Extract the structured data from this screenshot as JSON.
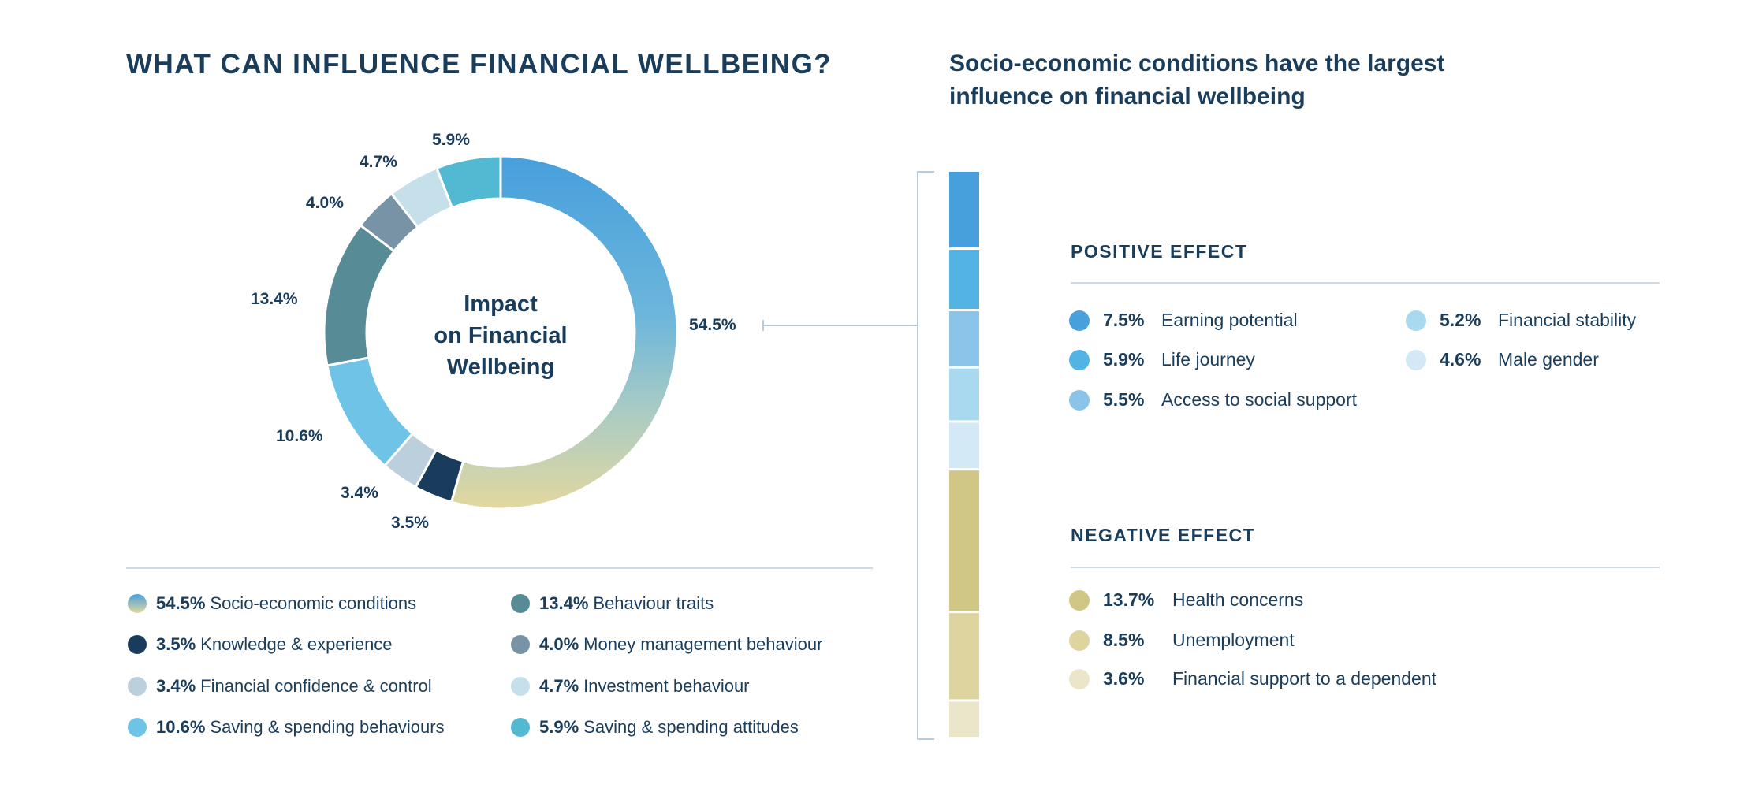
{
  "title": "WHAT CAN INFLUENCE FINANCIAL WELLBEING?",
  "subtitle_lines": [
    "Socio-economic conditions have the largest",
    "influence on financial wellbeing"
  ],
  "chart_data": [
    {
      "type": "pie",
      "variant": "donut",
      "center_label_lines": [
        "Impact",
        "on Financial",
        "Wellbeing"
      ],
      "segments": [
        {
          "label": "54.5%",
          "value": 54.5,
          "name": "Socio-economic conditions",
          "color": "gradient #479fdc→#e3d89f"
        },
        {
          "label": "3.5%",
          "value": 3.5,
          "name": "Knowledge & experience",
          "color": "#193c5c"
        },
        {
          "label": "3.4%",
          "value": 3.4,
          "name": "Financial confidence & control",
          "color": "#bccfdc"
        },
        {
          "label": "10.6%",
          "value": 10.6,
          "name": "Saving & spending behaviours",
          "color": "#6ec3e7"
        },
        {
          "label": "13.4%",
          "value": 13.4,
          "name": "Behaviour traits",
          "color": "#578c97"
        },
        {
          "label": "4.0%",
          "value": 4.0,
          "name": "Money management behaviour",
          "color": "#7893a6"
        },
        {
          "label": "4.7%",
          "value": 4.7,
          "name": "Investment behaviour",
          "color": "#c5e0ea"
        },
        {
          "label": "5.9%",
          "value": 5.9,
          "name": "Saving & spending attitudes",
          "color": "#53b9d2"
        }
      ],
      "legend": [
        {
          "pct": "54.5%",
          "text": "Socio-economic conditions",
          "color": "gradient"
        },
        {
          "pct": "13.4%",
          "text": "Behaviour traits",
          "color": "#578c97"
        },
        {
          "pct": "3.5%",
          "text": "Knowledge & experience",
          "color": "#193c5c"
        },
        {
          "pct": "4.0%",
          "text": "Money management behaviour",
          "color": "#7893a6"
        },
        {
          "pct": "3.4%",
          "text": "Financial confidence & control",
          "color": "#bccfdc"
        },
        {
          "pct": "4.7%",
          "text": "Investment behaviour",
          "color": "#c5e0ea"
        },
        {
          "pct": "10.6%",
          "text": "Saving & spending behaviours",
          "color": "#6ec3e7"
        },
        {
          "pct": "5.9%",
          "text": "Saving & spending attitudes",
          "color": "#53b9d2"
        }
      ]
    },
    {
      "type": "bar",
      "variant": "stacked-vertical",
      "positive": {
        "heading": "POSITIVE EFFECT",
        "items": [
          {
            "pct": "7.5%",
            "value": 7.5,
            "text": "Earning potential",
            "color": "#479fdc"
          },
          {
            "pct": "5.9%",
            "value": 5.9,
            "text": "Life journey",
            "color": "#53b3e2"
          },
          {
            "pct": "5.5%",
            "value": 5.5,
            "text": "Access to social support",
            "color": "#8ac4e8"
          },
          {
            "pct": "5.2%",
            "value": 5.2,
            "text": "Financial stability",
            "color": "#a9d9ef"
          },
          {
            "pct": "4.6%",
            "value": 4.6,
            "text": "Male gender",
            "color": "#d3e9f6"
          }
        ]
      },
      "negative": {
        "heading": "NEGATIVE EFFECT",
        "items": [
          {
            "pct": "13.7%",
            "value": 13.7,
            "text": "Health concerns",
            "color": "#d0c685"
          },
          {
            "pct": "8.5%",
            "value": 8.5,
            "text": "Unemployment",
            "color": "#ddd4a0"
          },
          {
            "pct": "3.6%",
            "value": 3.6,
            "text": "Financial support to a dependent",
            "color": "#ebe6ca"
          }
        ]
      }
    }
  ],
  "colors": {
    "text": "#1a3d5c",
    "divider": "#cfdbe4",
    "connector": "#b9cbd8"
  }
}
